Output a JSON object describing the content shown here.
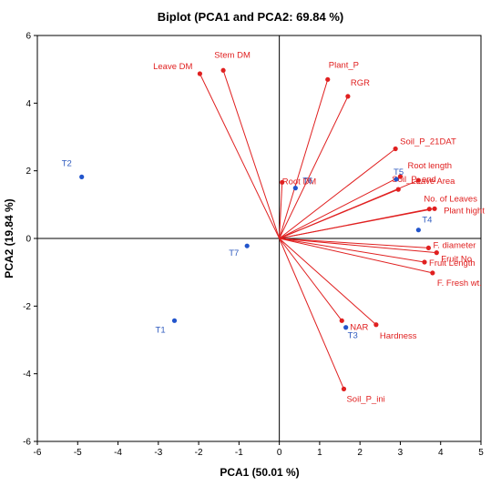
{
  "chart_data": {
    "type": "scatter",
    "title": "Biplot (PCA1 and PCA2: 69.84 %)",
    "xlabel": "PCA1 (50.01 %)",
    "ylabel": "PCA2 (19.84 %)",
    "xlim": [
      -6,
      5
    ],
    "ylim": [
      -6,
      6
    ],
    "xticks": [
      "-6",
      "-5",
      "-4",
      "-3",
      "-2",
      "-1",
      "0",
      "1",
      "2",
      "3",
      "4",
      "5"
    ],
    "yticks": [
      "-6",
      "-4",
      "-2",
      "0",
      "2",
      "4",
      "6"
    ],
    "grid": false,
    "colors": {
      "variables": "#e02020",
      "observations": "#2255cc",
      "frame": "#000000"
    },
    "variables": [
      {
        "name": "Stem DM",
        "x": -1.39,
        "y": 4.97
      },
      {
        "name": "Leave DM",
        "x": -1.97,
        "y": 4.87
      },
      {
        "name": "Plant_P",
        "x": 1.2,
        "y": 4.7
      },
      {
        "name": "RGR",
        "x": 1.7,
        "y": 4.2
      },
      {
        "name": "Soil_P_21DAT",
        "x": 2.88,
        "y": 2.65
      },
      {
        "name": "Root DM",
        "x": 0.07,
        "y": 1.66
      },
      {
        "name": "Root length",
        "x": 3.0,
        "y": 1.83
      },
      {
        "name": "Leave Area",
        "x": 3.45,
        "y": 1.72
      },
      {
        "name": "Soil_P_end",
        "x": 2.95,
        "y": 1.45
      },
      {
        "name": "No. of Leaves",
        "x": 3.72,
        "y": 0.87
      },
      {
        "name": "Plant hight",
        "x": 3.85,
        "y": 0.88
      },
      {
        "name": "F. diameter",
        "x": 3.7,
        "y": -0.28
      },
      {
        "name": "Fruit No",
        "x": 3.9,
        "y": -0.42
      },
      {
        "name": "Fruit Length",
        "x": 3.6,
        "y": -0.7
      },
      {
        "name": "F. Fresh wt.",
        "x": 3.8,
        "y": -1.02
      },
      {
        "name": "NAR",
        "x": 1.55,
        "y": -2.43
      },
      {
        "name": "Hardness",
        "x": 2.4,
        "y": -2.55
      },
      {
        "name": "Soil_P_ini",
        "x": 1.6,
        "y": -4.45
      }
    ],
    "observations": [
      {
        "name": "T2",
        "x": -4.9,
        "y": 1.82
      },
      {
        "name": "T5",
        "x": 2.9,
        "y": 1.75
      },
      {
        "name": "T6",
        "x": 0.4,
        "y": 1.49
      },
      {
        "name": "T4",
        "x": 3.45,
        "y": 0.25
      },
      {
        "name": "T7",
        "x": -0.8,
        "y": -0.22
      },
      {
        "name": "T1",
        "x": -2.6,
        "y": -2.43
      },
      {
        "name": "T3",
        "x": 1.65,
        "y": -2.63
      }
    ]
  }
}
